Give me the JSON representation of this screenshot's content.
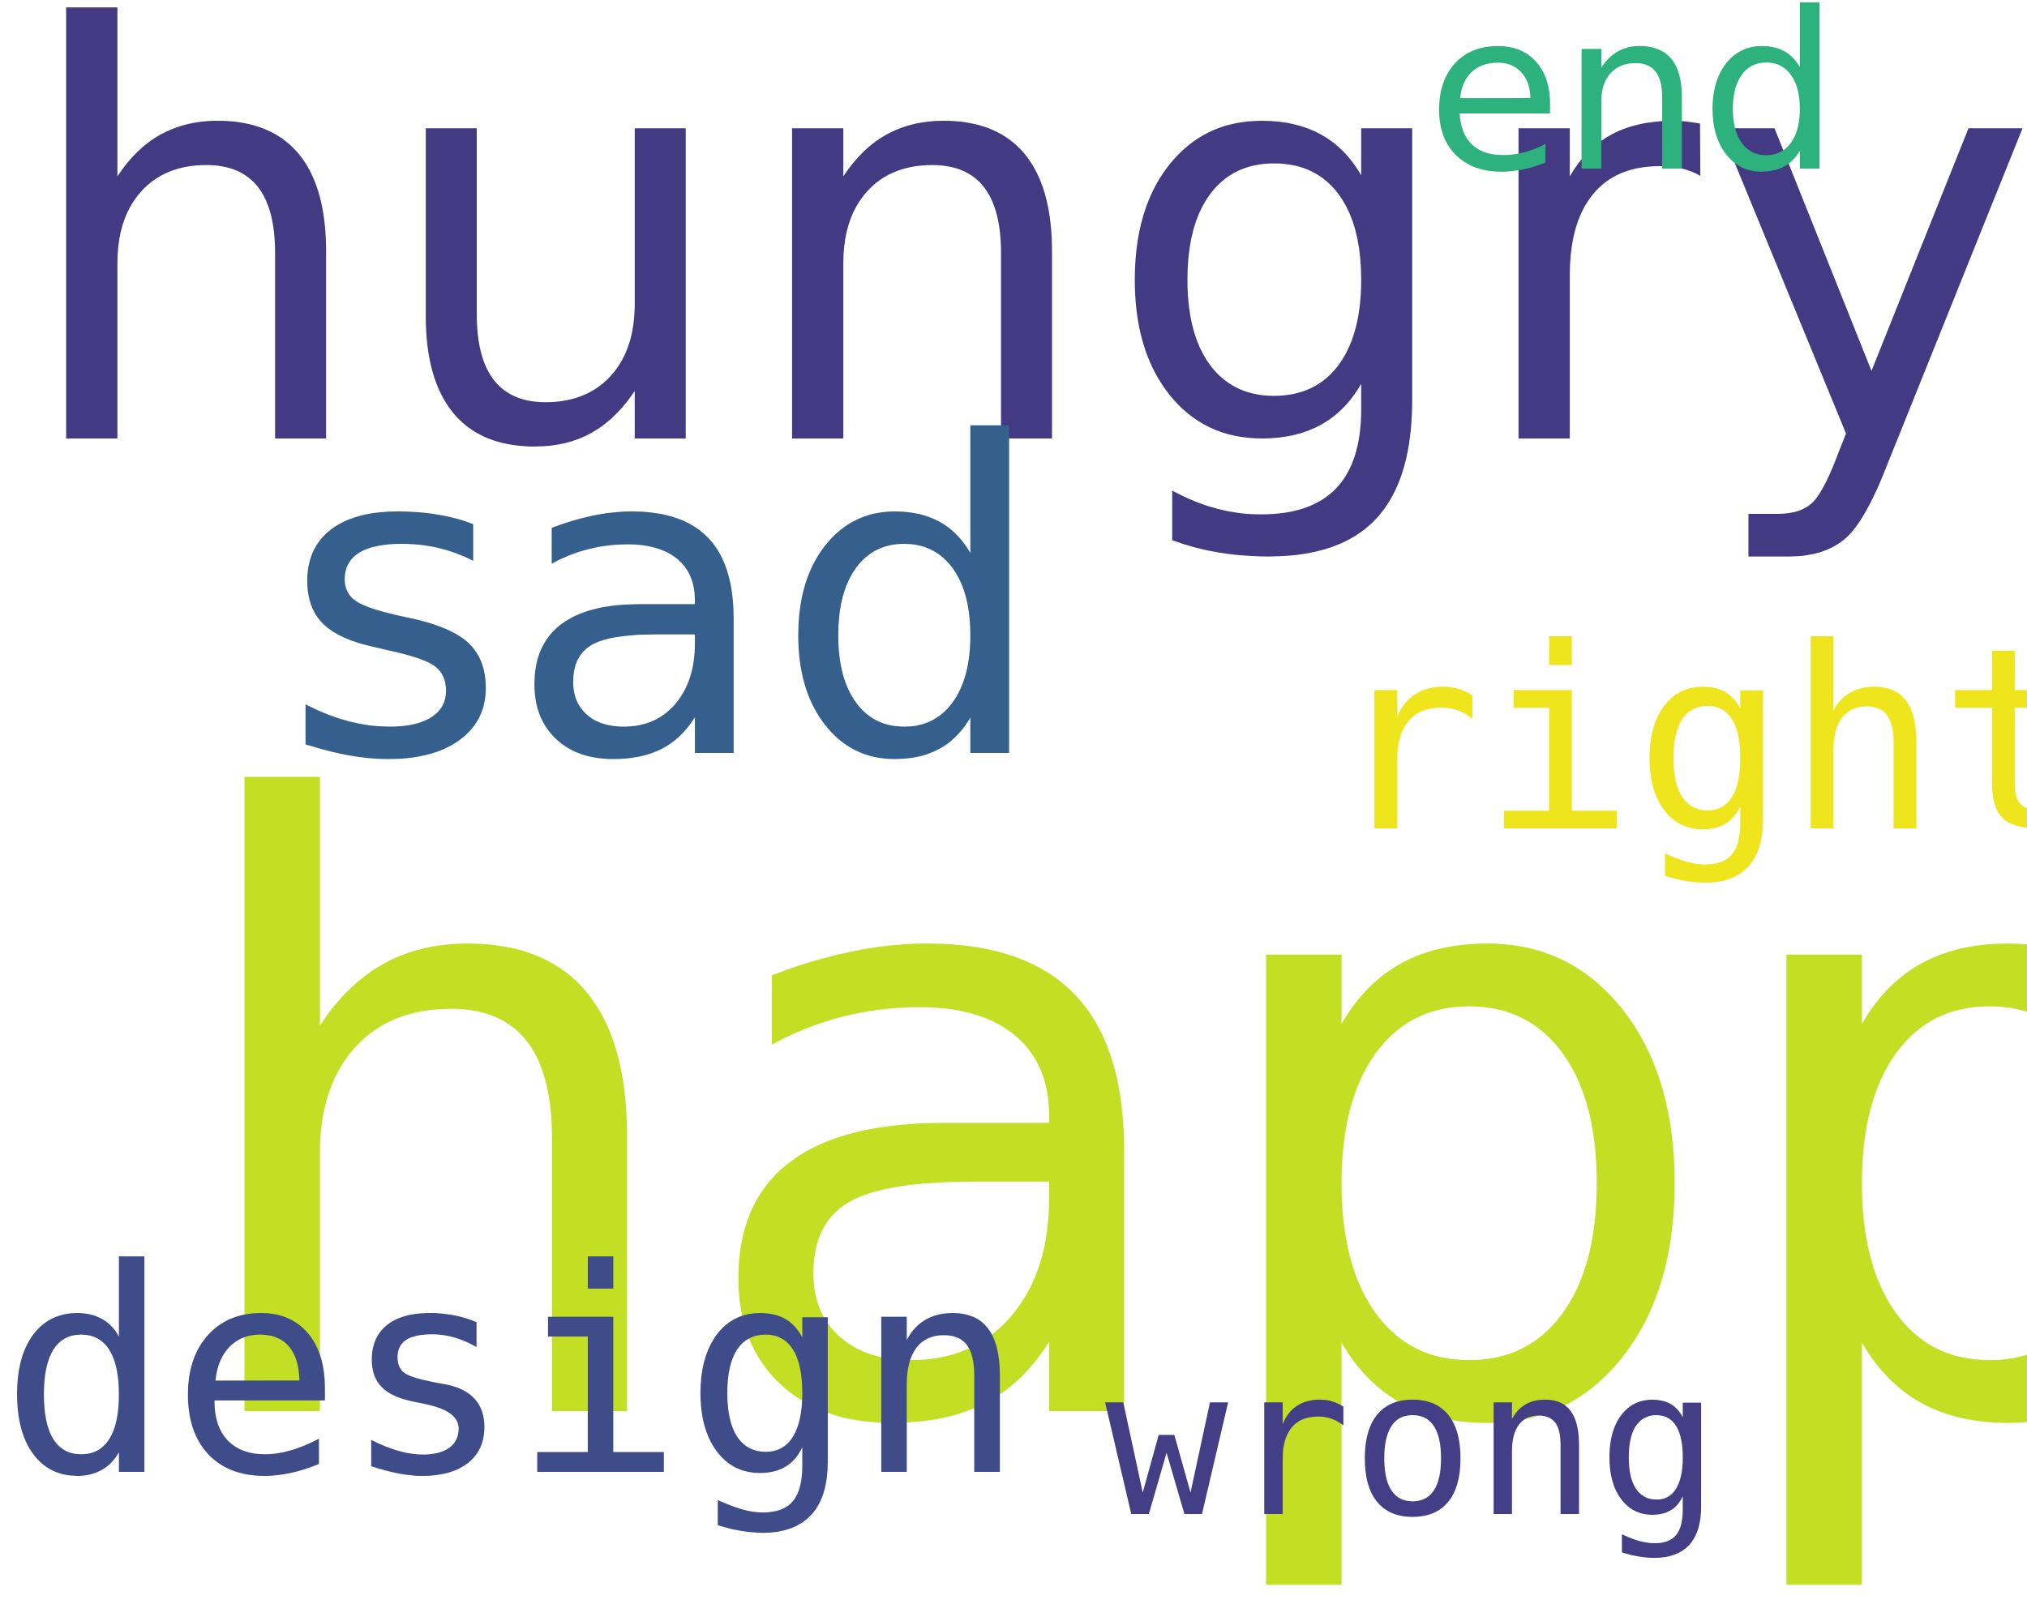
{
  "words": {
    "hungry": {
      "text": "hungry",
      "color": "#443983"
    },
    "happy": {
      "text": "happy",
      "color": "#c2df23"
    },
    "sad": {
      "text": "sad",
      "color": "#355f8d"
    },
    "right": {
      "text": "right",
      "color": "#efe51c"
    },
    "design": {
      "text": "design",
      "color": "#3e4c8a"
    },
    "wrong": {
      "text": "wrong",
      "color": "#433e85"
    },
    "end": {
      "text": "end",
      "color": "#2db27d"
    }
  },
  "background_color": "#ffffff"
}
